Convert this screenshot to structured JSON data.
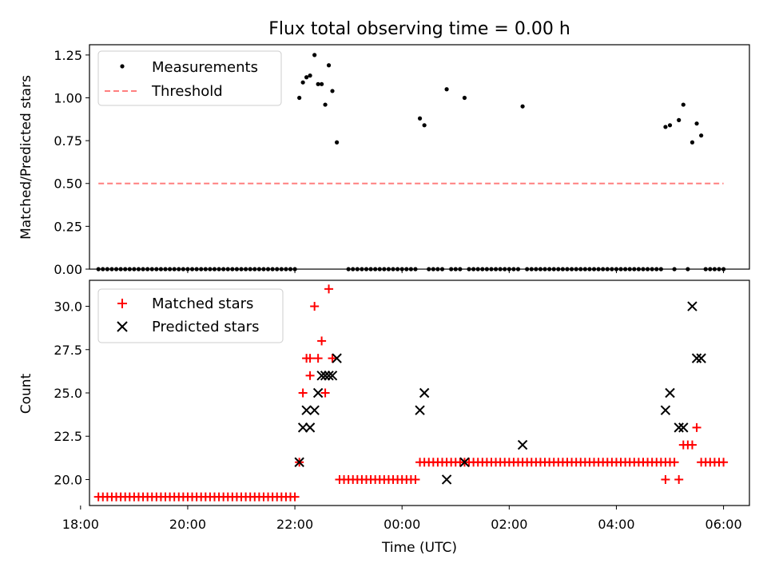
{
  "chart_data": [
    {
      "type": "scatter",
      "title": "Flux total observing time = 0.00 h",
      "ylabel": "Matched/Predicted stars",
      "xlabel": "",
      "xlim": [
        "18:10",
        "06:29"
      ],
      "ylim": [
        0,
        1.31
      ],
      "grid": false,
      "legend_position": "top-left",
      "x_tick_labels": [
        "18:00",
        "20:00",
        "22:00",
        "00:00",
        "02:00",
        "04:00",
        "06:00"
      ],
      "y_ticks": [
        0.0,
        0.25,
        0.5,
        0.75,
        1.0,
        1.25
      ],
      "y_tick_labels": [
        "0.00",
        "0.25",
        "0.50",
        "0.75",
        "1.00",
        "1.25"
      ],
      "series": [
        {
          "name": "Measurements",
          "marker": "dot",
          "color": "#000000",
          "points": [
            [
              "22:05",
              1.0
            ],
            [
              "22:09",
              1.09
            ],
            [
              "22:13",
              1.12
            ],
            [
              "22:17",
              1.13
            ],
            [
              "22:22",
              1.25
            ],
            [
              "22:26",
              1.08
            ],
            [
              "22:30",
              1.08
            ],
            [
              "22:34",
              0.96
            ],
            [
              "22:38",
              1.19
            ],
            [
              "22:42",
              1.04
            ],
            [
              "22:47",
              0.74
            ],
            [
              "00:20",
              0.88
            ],
            [
              "00:25",
              0.84
            ],
            [
              "00:50",
              1.05
            ],
            [
              "01:10",
              1.0
            ],
            [
              "02:15",
              0.95
            ],
            [
              "04:55",
              0.83
            ],
            [
              "05:00",
              0.84
            ],
            [
              "05:10",
              0.87
            ],
            [
              "05:15",
              0.96
            ],
            [
              "05:25",
              0.74
            ],
            [
              "05:30",
              0.85
            ],
            [
              "05:35",
              0.78
            ]
          ],
          "zero_segments": [
            [
              "18:20",
              "22:00"
            ],
            [
              "23:00",
              "00:15"
            ],
            [
              "00:30",
              "00:45"
            ],
            [
              "00:55",
              "01:05"
            ],
            [
              "01:15",
              "02:10"
            ],
            [
              "02:20",
              "04:50"
            ],
            [
              "05:05",
              "05:05"
            ],
            [
              "05:20",
              "05:20"
            ],
            [
              "05:40",
              "06:00"
            ]
          ]
        },
        {
          "name": "Threshold",
          "style": "dashed",
          "color": "#ff7f7f",
          "x": [
            "18:20",
            "06:00"
          ],
          "y": [
            0.5,
            0.5
          ]
        }
      ]
    },
    {
      "type": "scatter",
      "title": "",
      "xlabel": "Time (UTC)",
      "ylabel": "Count",
      "xlim": [
        "18:10",
        "06:29"
      ],
      "ylim": [
        18.5,
        31.5
      ],
      "grid": false,
      "legend_position": "top-left",
      "x_tick_labels": [
        "18:00",
        "20:00",
        "22:00",
        "00:00",
        "02:00",
        "04:00",
        "06:00"
      ],
      "y_ticks": [
        20.0,
        22.5,
        25.0,
        27.5,
        30.0
      ],
      "y_tick_labels": [
        "20.0",
        "22.5",
        "25.0",
        "27.5",
        "30.0"
      ],
      "series": [
        {
          "name": "Matched stars",
          "marker": "plus",
          "color": "#ff0000",
          "points": [
            [
              "22:05",
              21
            ],
            [
              "22:09",
              25
            ],
            [
              "22:13",
              27
            ],
            [
              "22:17",
              26
            ],
            [
              "22:17",
              27
            ],
            [
              "22:22",
              30
            ],
            [
              "22:26",
              27
            ],
            [
              "22:30",
              28
            ],
            [
              "22:34",
              25
            ],
            [
              "22:38",
              31
            ],
            [
              "22:42",
              27
            ],
            [
              "04:55",
              20
            ],
            [
              "05:10",
              20
            ],
            [
              "05:15",
              22
            ],
            [
              "05:20",
              22
            ],
            [
              "05:25",
              22
            ],
            [
              "05:30",
              23
            ]
          ],
          "level_segments": [
            {
              "y": 19,
              "from": "18:20",
              "to": "22:00"
            },
            {
              "y": 20,
              "from": "22:50",
              "to": "00:15"
            },
            {
              "y": 21,
              "from": "00:20",
              "to": "05:05"
            },
            {
              "y": 21,
              "from": "05:35",
              "to": "06:00"
            }
          ]
        },
        {
          "name": "Predicted stars",
          "marker": "x",
          "color": "#000000",
          "points": [
            [
              "22:05",
              21
            ],
            [
              "22:09",
              23
            ],
            [
              "22:13",
              24
            ],
            [
              "22:17",
              23
            ],
            [
              "22:22",
              24
            ],
            [
              "22:26",
              25
            ],
            [
              "22:30",
              26
            ],
            [
              "22:34",
              26
            ],
            [
              "22:38",
              26
            ],
            [
              "22:42",
              26
            ],
            [
              "22:47",
              27
            ],
            [
              "00:20",
              24
            ],
            [
              "00:25",
              25
            ],
            [
              "00:50",
              20
            ],
            [
              "01:10",
              21
            ],
            [
              "02:15",
              22
            ],
            [
              "04:55",
              24
            ],
            [
              "05:00",
              25
            ],
            [
              "05:10",
              23
            ],
            [
              "05:15",
              23
            ],
            [
              "05:25",
              30
            ],
            [
              "05:30",
              27
            ],
            [
              "05:35",
              27
            ]
          ]
        }
      ]
    }
  ]
}
